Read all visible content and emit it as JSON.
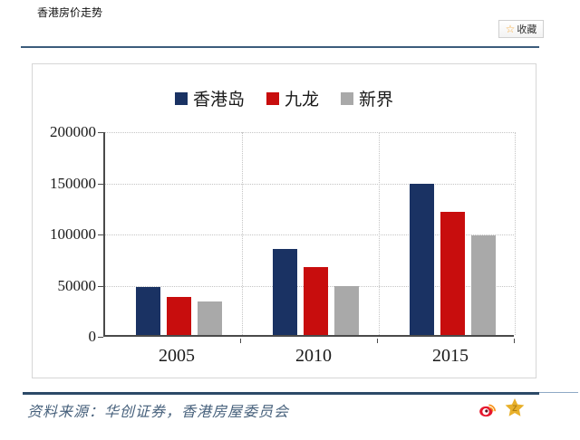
{
  "page": {
    "title": "香港房价走势",
    "favorite_button": {
      "label": "收藏",
      "icon": "star-icon"
    },
    "source_label": "资料来源：华创证券，香港房屋委员会",
    "footer_icons": [
      "weibo-share-icon",
      "qzone-share-icon"
    ]
  },
  "colors": {
    "series_hk_island": "#1a3263",
    "series_kowloon": "#c80d0d",
    "series_new_territories": "#a9a9a9",
    "axis": "#4a4a4a",
    "gridline": "#c4c4c4",
    "top_rule": "#3c5c7c",
    "bottom_rule": "#2c4a68",
    "favorite_star": "#f5a93c"
  },
  "chart_data": {
    "type": "bar",
    "title": "",
    "categories": [
      "2005",
      "2010",
      "2015"
    ],
    "series": [
      {
        "name": "香港岛",
        "color": "#1a3263",
        "values": [
          47000,
          84000,
          148000
        ]
      },
      {
        "name": "九龙",
        "color": "#c80d0d",
        "values": [
          37000,
          66000,
          120000
        ]
      },
      {
        "name": "新界",
        "color": "#a9a9a9",
        "values": [
          33000,
          48000,
          97000
        ]
      }
    ],
    "xlabel": "",
    "ylabel": "",
    "ylim": [
      0,
      200000
    ],
    "yticks": [
      0,
      50000,
      100000,
      150000,
      200000
    ],
    "grid": "dotted",
    "legend_position": "top-center"
  }
}
